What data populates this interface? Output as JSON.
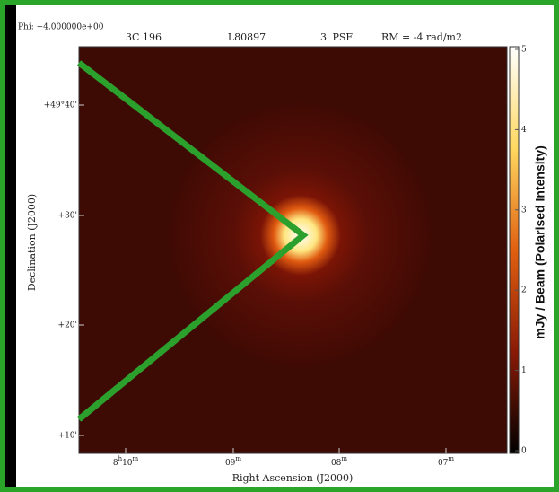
{
  "header": {
    "phi": "Phi: −4.000000e+00",
    "source": "3C 196",
    "obs_id": "L80897",
    "psf": "3' PSF",
    "rm": "RM = -4 rad/m2"
  },
  "x_axis": {
    "title": "Right Ascension (J2000)",
    "ticks": [
      [
        "8",
        "h",
        "10",
        "m"
      ],
      [
        "09",
        "m"
      ],
      [
        "08",
        "m"
      ],
      [
        "07",
        "m"
      ]
    ]
  },
  "y_axis": {
    "title": "Declination (J2000)",
    "ticks": [
      "+49°40'",
      "+30'",
      "+20'",
      "+10'"
    ]
  },
  "colorbar": {
    "title": "mJy / Beam  (Polarised Intensity)",
    "ticks": [
      "5",
      "4",
      "3",
      "2",
      "1",
      "0"
    ]
  }
}
